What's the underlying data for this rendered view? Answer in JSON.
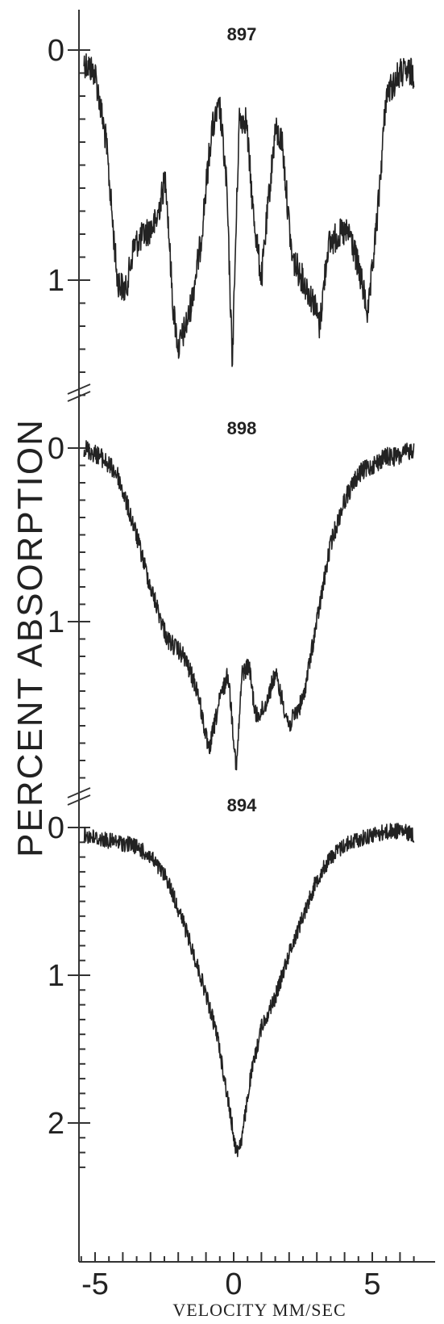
{
  "chart_data": {
    "type": "line",
    "xlabel": "VELOCITY MM/SEC",
    "ylabel": "PERCENT ABSORPTION",
    "xlim": [
      -5.5,
      6.5
    ],
    "x_ticks": [
      "-5",
      "0",
      "5"
    ],
    "x_tick_values": [
      -5,
      0,
      5
    ],
    "panels": [
      {
        "name": "897",
        "ylim": [
          0,
          1.5
        ],
        "y_ticks": [
          "0",
          "1"
        ],
        "y_tick_values": [
          0,
          1
        ],
        "series": [
          {
            "x": [
              -5.4,
              -5.0,
              -4.6,
              -4.2,
              -3.9,
              -3.6,
              -3.2,
              -2.8,
              -2.45,
              -2.2,
              -2.0,
              -1.6,
              -1.2,
              -0.8,
              -0.5,
              -0.25,
              -0.05,
              0.2,
              0.45,
              0.7,
              1.0,
              1.3,
              1.5,
              1.75,
              2.1,
              2.5,
              2.9,
              3.1,
              3.4,
              3.8,
              4.2,
              4.6,
              4.85,
              5.2,
              5.5,
              6.0,
              6.5
            ],
            "y": [
              0.05,
              0.1,
              0.4,
              1.0,
              1.05,
              0.85,
              0.8,
              0.75,
              0.55,
              1.1,
              1.3,
              1.15,
              0.85,
              0.35,
              0.25,
              0.6,
              1.35,
              0.3,
              0.3,
              0.7,
              1.0,
              0.6,
              0.35,
              0.4,
              0.9,
              1.0,
              1.1,
              1.2,
              0.85,
              0.8,
              0.8,
              1.0,
              1.15,
              0.7,
              0.2,
              0.1,
              0.1
            ]
          }
        ]
      },
      {
        "name": "898",
        "ylim": [
          0,
          1.9
        ],
        "y_ticks": [
          "0",
          "1"
        ],
        "y_tick_values": [
          0,
          1
        ],
        "series": [
          {
            "x": [
              -5.4,
              -4.8,
              -4.2,
              -3.6,
              -3.0,
              -2.4,
              -1.8,
              -1.3,
              -0.9,
              -0.5,
              -0.2,
              0.1,
              0.3,
              0.55,
              0.8,
              1.1,
              1.5,
              2.0,
              2.5,
              3.0,
              3.5,
              4.0,
              4.5,
              5.0,
              5.5,
              6.0,
              6.5
            ],
            "y": [
              0.0,
              0.05,
              0.15,
              0.45,
              0.8,
              1.1,
              1.2,
              1.4,
              1.75,
              1.45,
              1.3,
              1.85,
              1.3,
              1.25,
              1.55,
              1.5,
              1.3,
              1.6,
              1.45,
              1.0,
              0.55,
              0.3,
              0.15,
              0.1,
              0.05,
              0.05,
              0.0
            ]
          }
        ]
      },
      {
        "name": "894",
        "ylim": [
          0,
          2.35
        ],
        "y_ticks": [
          "0",
          "1",
          "2"
        ],
        "y_tick_values": [
          0,
          1,
          2
        ],
        "series": [
          {
            "x": [
              -5.4,
              -4.8,
              -4.2,
              -3.6,
              -3.0,
              -2.4,
              -1.8,
              -1.2,
              -0.6,
              -0.2,
              0.1,
              0.3,
              0.6,
              1.0,
              1.5,
              2.0,
              2.5,
              3.0,
              3.5,
              4.0,
              4.5,
              5.0,
              5.5,
              6.0,
              6.5
            ],
            "y": [
              0.05,
              0.08,
              0.1,
              0.12,
              0.2,
              0.35,
              0.65,
              1.0,
              1.4,
              1.85,
              2.2,
              2.1,
              1.7,
              1.35,
              1.15,
              0.85,
              0.6,
              0.35,
              0.2,
              0.12,
              0.08,
              0.05,
              0.03,
              0.02,
              0.05
            ]
          }
        ]
      }
    ]
  }
}
